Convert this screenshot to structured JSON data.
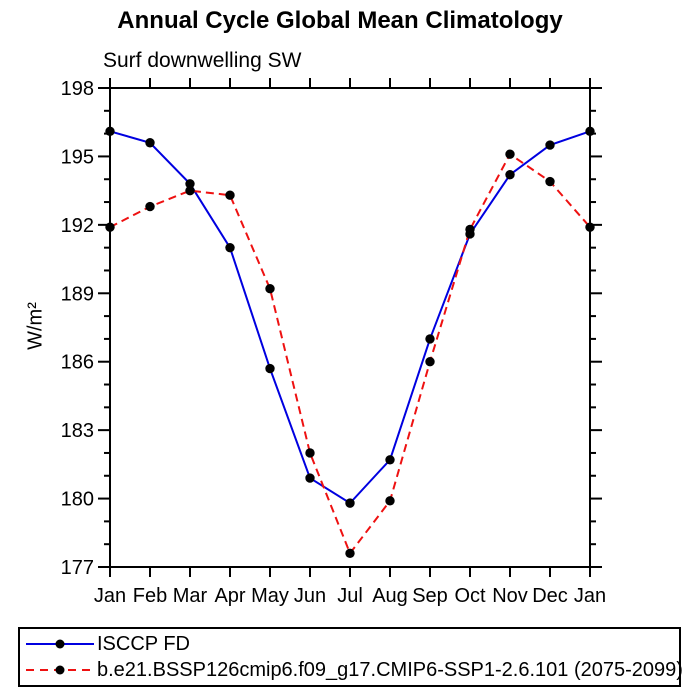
{
  "chart_data": {
    "type": "line",
    "title": "Annual Cycle Global Mean Climatology",
    "subtitle": "Surf downwelling SW",
    "ylabel": "W/m²",
    "categories": [
      "Jan",
      "Feb",
      "Mar",
      "Apr",
      "May",
      "Jun",
      "Jul",
      "Aug",
      "Sep",
      "Oct",
      "Nov",
      "Dec",
      "Jan"
    ],
    "ylim": [
      177,
      198
    ],
    "ytick_major": 3,
    "ytick_minor": 1,
    "grid": false,
    "legend_position": "bottom-left-box",
    "axis_color": "#000000",
    "marker": "filled-circle",
    "marker_color": "#000000",
    "series": [
      {
        "name": "ISCCP FD",
        "color": "#0000e0",
        "style": "solid",
        "values": [
          196.1,
          195.6,
          193.8,
          191.0,
          185.7,
          180.9,
          179.8,
          181.7,
          187.0,
          191.6,
          194.2,
          195.5,
          196.1
        ]
      },
      {
        "name": "b.e21.BSSP126cmip6.f09_g17.CMIP6-SSP1-2.6.101 (2075-2099)",
        "color": "#ee1111",
        "style": "dashed",
        "values": [
          191.9,
          192.8,
          193.5,
          193.3,
          189.2,
          182.0,
          177.6,
          179.9,
          186.0,
          191.8,
          195.1,
          193.9,
          191.9
        ]
      }
    ]
  }
}
